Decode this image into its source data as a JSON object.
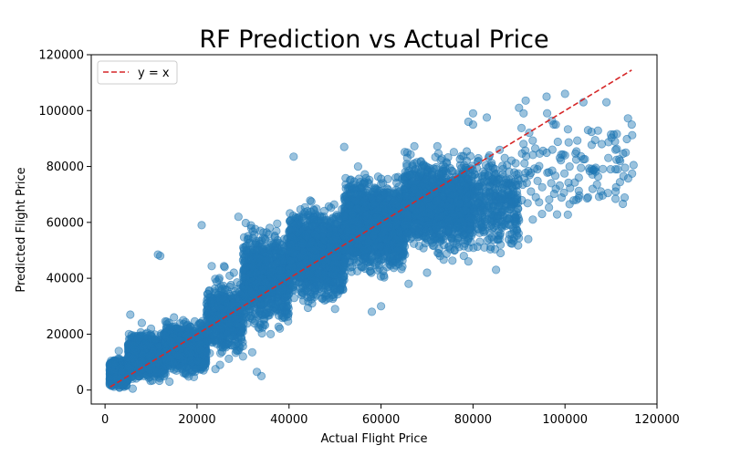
{
  "chart_data": {
    "type": "scatter",
    "title": "RF Prediction vs Actual Price",
    "xlabel": "Actual Flight Price",
    "ylabel": "Predicted Flight Price",
    "xlim": [
      -3000,
      120000
    ],
    "ylim": [
      -5000,
      120000
    ],
    "xticks": [
      0,
      20000,
      40000,
      60000,
      80000,
      100000,
      120000
    ],
    "yticks": [
      0,
      20000,
      40000,
      60000,
      80000,
      100000,
      120000
    ],
    "grid": false,
    "legend": {
      "position": "top-left",
      "entries": [
        "y = x"
      ]
    },
    "point_color": "#1f77b4",
    "point_alpha": 0.45,
    "reference_line": {
      "name": "y = x",
      "color": "#d62728",
      "style": "dashed",
      "from": [
        1100,
        1100
      ],
      "to": [
        114500,
        114500
      ]
    },
    "clusters": [
      {
        "x": [
          1000,
          5000
        ],
        "y": [
          0,
          12000
        ],
        "n": 900
      },
      {
        "x": [
          5000,
          13000
        ],
        "y": [
          2000,
          22000
        ],
        "n": 1400
      },
      {
        "x": [
          13000,
          22000
        ],
        "y": [
          4000,
          26000
        ],
        "n": 1200
      },
      {
        "x": [
          22000,
          30000
        ],
        "y": [
          8000,
          45000
        ],
        "n": 500
      },
      {
        "x": [
          30000,
          40000
        ],
        "y": [
          18000,
          62000
        ],
        "n": 900
      },
      {
        "x": [
          40000,
          52000
        ],
        "y": [
          28000,
          70000
        ],
        "n": 1300
      },
      {
        "x": [
          52000,
          65000
        ],
        "y": [
          38000,
          80000
        ],
        "n": 1600
      },
      {
        "x": [
          65000,
          80000
        ],
        "y": [
          45000,
          88000
        ],
        "n": 1300
      },
      {
        "x": [
          80000,
          90000
        ],
        "y": [
          45000,
          90000
        ],
        "n": 350
      },
      {
        "x": [
          90000,
          115000
        ],
        "y": [
          58000,
          106000
        ],
        "n": 120
      }
    ],
    "points": [
      [
        1000,
        2000
      ],
      [
        5500,
        27000
      ],
      [
        11500,
        48500
      ],
      [
        12000,
        48000
      ],
      [
        21000,
        59000
      ],
      [
        29000,
        62000
      ],
      [
        33000,
        6500
      ],
      [
        34000,
        5000
      ],
      [
        41000,
        83500
      ],
      [
        52000,
        87000
      ],
      [
        55000,
        80000
      ],
      [
        60000,
        30000
      ],
      [
        58000,
        28000
      ],
      [
        79000,
        96000
      ],
      [
        80000,
        95000
      ],
      [
        83000,
        97500
      ],
      [
        80000,
        99000
      ],
      [
        90000,
        101000
      ],
      [
        91000,
        99000
      ],
      [
        96000,
        105000
      ],
      [
        100000,
        106000
      ],
      [
        104000,
        103000
      ],
      [
        109000,
        103000
      ],
      [
        114500,
        95000
      ],
      [
        111000,
        86000
      ],
      [
        111000,
        79000
      ],
      [
        105000,
        93000
      ],
      [
        105000,
        69000
      ],
      [
        106000,
        72000
      ],
      [
        101000,
        66500
      ],
      [
        98000,
        72000
      ],
      [
        97000,
        74000
      ],
      [
        94000,
        79000
      ],
      [
        88000,
        59000
      ],
      [
        86000,
        49000
      ],
      [
        85000,
        43000
      ],
      [
        79000,
        46000
      ],
      [
        76000,
        50000
      ],
      [
        70000,
        42000
      ],
      [
        92000,
        54000
      ],
      [
        100000,
        84000
      ],
      [
        101000,
        80000
      ],
      [
        108000,
        88000
      ],
      [
        98000,
        95000
      ],
      [
        103000,
        76000
      ],
      [
        95000,
        63000
      ],
      [
        93000,
        61000
      ],
      [
        86000,
        52000
      ],
      [
        78000,
        48000
      ],
      [
        66000,
        38000
      ],
      [
        50000,
        29000
      ],
      [
        45000,
        31000
      ],
      [
        38000,
        22000
      ],
      [
        36000,
        20000
      ],
      [
        32000,
        13500
      ],
      [
        30000,
        12000
      ],
      [
        25000,
        9000
      ],
      [
        24000,
        7500
      ],
      [
        28000,
        42000
      ],
      [
        26000,
        44000
      ],
      [
        8000,
        24000
      ],
      [
        10000,
        22000
      ],
      [
        15000,
        26000
      ],
      [
        17000,
        25000
      ],
      [
        20000,
        19000
      ],
      [
        3000,
        14000
      ],
      [
        2000,
        9000
      ],
      [
        6000,
        500
      ],
      [
        14000,
        3000
      ],
      [
        44000,
        64000
      ]
    ]
  }
}
